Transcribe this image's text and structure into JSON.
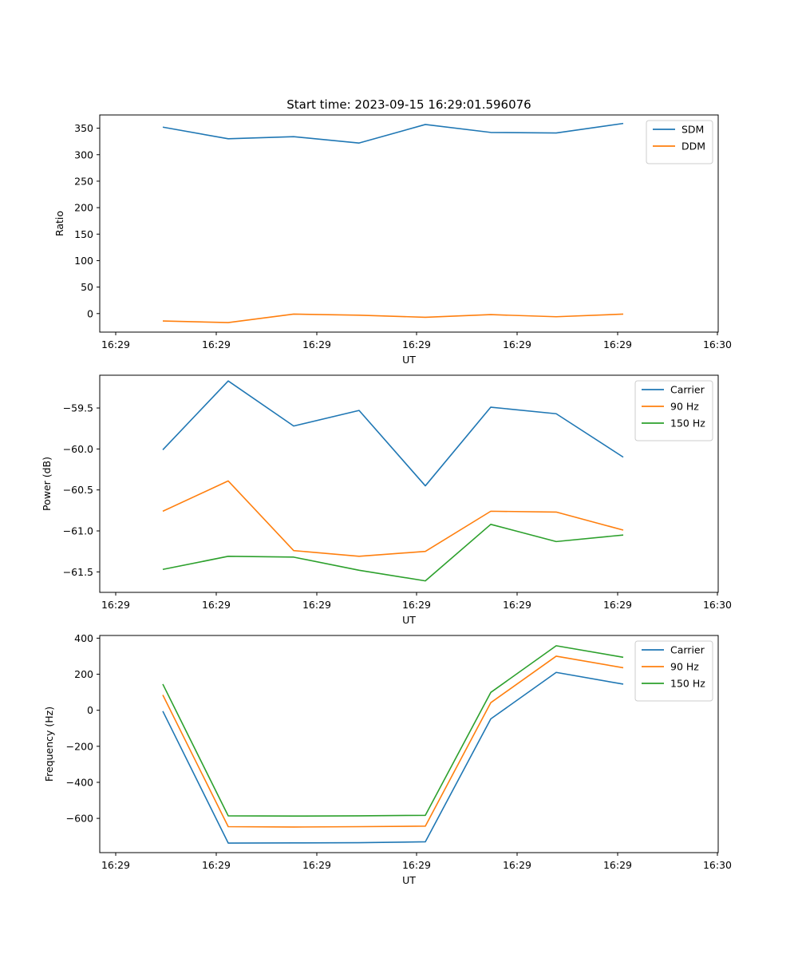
{
  "chart_data": [
    {
      "type": "line",
      "title": "Start time: 2023-09-15 16:29:01.596076",
      "xlabel": "UT",
      "ylabel": "Ratio",
      "x_tick_labels": [
        "16:29",
        "16:29",
        "16:29",
        "16:29",
        "16:29",
        "16:29",
        "16:30"
      ],
      "ylim": [
        -35,
        375
      ],
      "y_ticks": [
        {
          "value": 0,
          "label": "0"
        },
        {
          "value": 50,
          "label": "50"
        },
        {
          "value": 100,
          "label": "100"
        },
        {
          "value": 150,
          "label": "150"
        },
        {
          "value": 200,
          "label": "200"
        },
        {
          "value": 250,
          "label": "250"
        },
        {
          "value": 300,
          "label": "300"
        },
        {
          "value": 350,
          "label": "350"
        }
      ],
      "legend_position": "top-right",
      "series": [
        {
          "name": "SDM",
          "color": "#1f77b4",
          "values": [
            352,
            330,
            334,
            322,
            357,
            342,
            341,
            359
          ]
        },
        {
          "name": "DDM",
          "color": "#ff7f0e",
          "values": [
            -14,
            -17,
            -1,
            -3,
            -7,
            -2,
            -6,
            -1
          ]
        }
      ]
    },
    {
      "type": "line",
      "title": "",
      "xlabel": "UT",
      "ylabel": "Power (dB)",
      "x_tick_labels": [
        "16:29",
        "16:29",
        "16:29",
        "16:29",
        "16:29",
        "16:29",
        "16:30"
      ],
      "ylim": [
        -61.75,
        -59.1
      ],
      "y_ticks": [
        {
          "value": -61.5,
          "label": "−61.5"
        },
        {
          "value": -61.0,
          "label": "−61.0"
        },
        {
          "value": -60.5,
          "label": "−60.5"
        },
        {
          "value": -60.0,
          "label": "−60.0"
        },
        {
          "value": -59.5,
          "label": "−59.5"
        }
      ],
      "legend_position": "top-right",
      "series": [
        {
          "name": "Carrier",
          "color": "#1f77b4",
          "values": [
            -60.01,
            -59.17,
            -59.72,
            -59.53,
            -60.45,
            -59.49,
            -59.57,
            -60.1
          ]
        },
        {
          "name": "90 Hz",
          "color": "#ff7f0e",
          "values": [
            -60.76,
            -60.39,
            -61.24,
            -61.31,
            -61.25,
            -60.76,
            -60.77,
            -60.99
          ]
        },
        {
          "name": "150 Hz",
          "color": "#2ca02c",
          "values": [
            -61.47,
            -61.31,
            -61.32,
            -61.48,
            -61.61,
            -60.92,
            -61.13,
            -61.05
          ]
        }
      ]
    },
    {
      "type": "line",
      "title": "",
      "xlabel": "UT",
      "ylabel": "Frequency (Hz)",
      "x_tick_labels": [
        "16:29",
        "16:29",
        "16:29",
        "16:29",
        "16:29",
        "16:29",
        "16:30"
      ],
      "ylim": [
        -790,
        415
      ],
      "y_ticks": [
        {
          "value": -600,
          "label": "−600"
        },
        {
          "value": -400,
          "label": "−400"
        },
        {
          "value": -200,
          "label": "−200"
        },
        {
          "value": 0,
          "label": "0"
        },
        {
          "value": 200,
          "label": "200"
        },
        {
          "value": 400,
          "label": "400"
        }
      ],
      "legend_position": "top-right",
      "series": [
        {
          "name": "Carrier",
          "color": "#1f77b4",
          "values": [
            -5,
            -737,
            -736,
            -735,
            -730,
            -48,
            210,
            145
          ]
        },
        {
          "name": "90 Hz",
          "color": "#ff7f0e",
          "values": [
            85,
            -646,
            -648,
            -646,
            -643,
            42,
            300,
            236
          ]
        },
        {
          "name": "150 Hz",
          "color": "#2ca02c",
          "values": [
            145,
            -586,
            -587,
            -586,
            -583,
            99,
            358,
            294
          ]
        }
      ]
    }
  ]
}
